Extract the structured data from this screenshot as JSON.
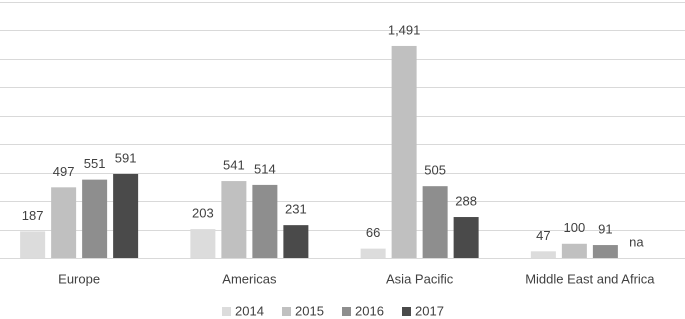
{
  "chart_data": {
    "type": "bar",
    "categories": [
      "Europe",
      "Americas",
      "Asia Pacific",
      "Middle East and Africa"
    ],
    "series": [
      {
        "name": "2014",
        "color": "#dcdcdc",
        "values": [
          187,
          203,
          66,
          47
        ],
        "value_labels": [
          "187",
          "203",
          "66",
          "47"
        ]
      },
      {
        "name": "2015",
        "color": "#c0c0c0",
        "values": [
          497,
          541,
          1491,
          100
        ],
        "value_labels": [
          "497",
          "541",
          "1,491",
          "100"
        ]
      },
      {
        "name": "2016",
        "color": "#8e8e8e",
        "values": [
          551,
          514,
          505,
          91
        ],
        "value_labels": [
          "551",
          "514",
          "505",
          "91"
        ]
      },
      {
        "name": "2017",
        "color": "#4a4a4a",
        "values": [
          591,
          231,
          288,
          null
        ],
        "value_labels": [
          "591",
          "231",
          "288",
          "na"
        ]
      }
    ],
    "ylim": [
      0,
      1800
    ],
    "yticks": [
      0,
      200,
      400,
      600,
      800,
      1000,
      1200,
      1400,
      1600,
      1800
    ],
    "grid": true,
    "legend": "bottom"
  }
}
